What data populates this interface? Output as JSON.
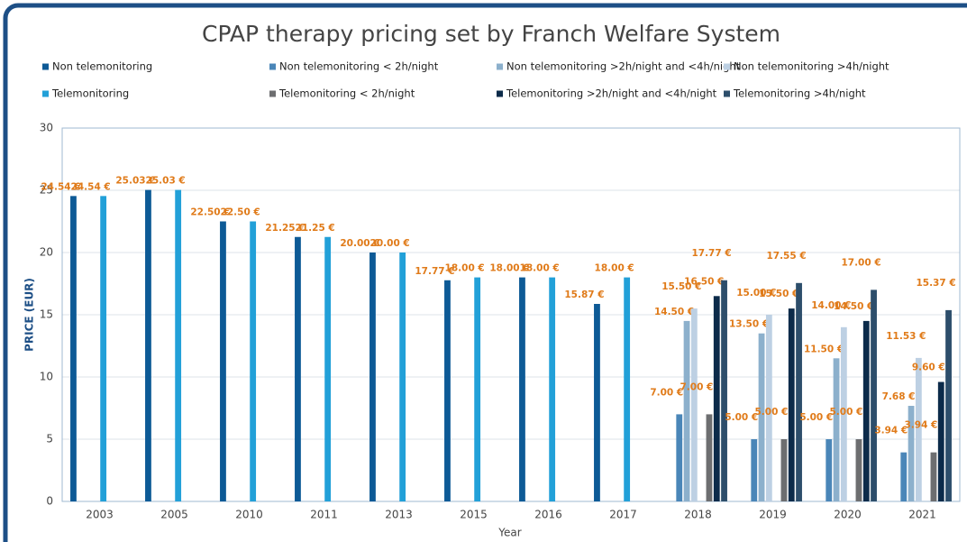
{
  "chart_data": {
    "type": "bar",
    "title": "CPAP therapy pricing set by Franch Welfare System",
    "x_label": "Year",
    "y_label": "PRICE (EUR)",
    "categories": [
      "2003",
      "2005",
      "2010",
      "2011",
      "2013",
      "2015",
      "2016",
      "2017",
      "2018",
      "2019",
      "2020",
      "2021"
    ],
    "ylim": [
      0,
      30
    ],
    "yticks": [
      0,
      5,
      10,
      15,
      20,
      25,
      30
    ],
    "grid": true,
    "series": [
      {
        "name": "Non telemonitoring",
        "color": "#0d5a96",
        "values": [
          24.54,
          25.03,
          22.5,
          21.25,
          20,
          17.77,
          18,
          15.87,
          null,
          null,
          null,
          null
        ],
        "value_labels": [
          "24.54 €",
          "25.03 €",
          "22.50 €",
          "21.25 €",
          "20.00 €",
          "17.77 €",
          "18.00 €",
          "15.87 €",
          null,
          null,
          null,
          null
        ]
      },
      {
        "name": "Non telemonitoring < 2h/night",
        "color": "#4a86b8",
        "values": [
          null,
          null,
          null,
          null,
          null,
          null,
          null,
          null,
          7,
          5,
          5,
          3.94
        ],
        "value_labels": [
          null,
          null,
          null,
          null,
          null,
          null,
          null,
          null,
          "7.00 €",
          "5.00 €",
          "5.00 €",
          "3.94 €"
        ]
      },
      {
        "name": "Non telemonitoring >2h/night and <4h/night",
        "color": "#8cb0cc",
        "values": [
          null,
          null,
          null,
          null,
          null,
          null,
          null,
          null,
          14.5,
          13.5,
          11.5,
          7.68
        ],
        "value_labels": [
          null,
          null,
          null,
          null,
          null,
          null,
          null,
          null,
          "14.50 €",
          "13.50 €",
          "11.50 €",
          "7.68 €"
        ]
      },
      {
        "name": "Non telemonitoring >4h/night",
        "color": "#bdd0e3",
        "values": [
          null,
          null,
          null,
          null,
          null,
          null,
          null,
          null,
          15.5,
          15,
          14,
          11.53
        ],
        "value_labels": [
          null,
          null,
          null,
          null,
          null,
          null,
          null,
          null,
          "15.50 €",
          "15.00 €",
          "14.00 €",
          "11.53 €"
        ]
      },
      {
        "name": "Telemonitoring",
        "color": "#22a0d8",
        "values": [
          24.54,
          25.03,
          22.5,
          21.25,
          20,
          18,
          18,
          18,
          null,
          null,
          null,
          null
        ],
        "value_labels": [
          "24.54 €",
          "25.03 €",
          "22.50 €",
          "21.25 €",
          "20.00 €",
          "18.00 €",
          "18.00 €",
          "18.00 €",
          null,
          null,
          null,
          null
        ]
      },
      {
        "name": "Telemonitoring < 2h/night",
        "color": "#6d6e70",
        "values": [
          null,
          null,
          null,
          null,
          null,
          null,
          null,
          null,
          7,
          5,
          5,
          3.94
        ],
        "value_labels": [
          null,
          null,
          null,
          null,
          null,
          null,
          null,
          null,
          "7.00 €",
          "5.00 €",
          "5.00 €",
          "3.94 €"
        ]
      },
      {
        "name": "Telemonitoring >2h/night and <4h/night",
        "color": "#0c2b4a",
        "values": [
          null,
          null,
          null,
          null,
          null,
          null,
          null,
          null,
          16.5,
          15.5,
          14.5,
          9.6
        ],
        "value_labels": [
          null,
          null,
          null,
          null,
          null,
          null,
          null,
          null,
          "16.50 €",
          "15.50 €",
          "14.50 €",
          "9.60 €"
        ]
      },
      {
        "name": "Telemonitoring >4h/night",
        "color": "#2d4e6b",
        "values": [
          null,
          null,
          null,
          null,
          null,
          null,
          null,
          null,
          17.77,
          17.55,
          17,
          15.37
        ],
        "value_labels": [
          null,
          null,
          null,
          null,
          null,
          null,
          null,
          null,
          "17.77 €",
          "17.55 €",
          "17.00 €",
          "15.37 €"
        ]
      }
    ]
  }
}
